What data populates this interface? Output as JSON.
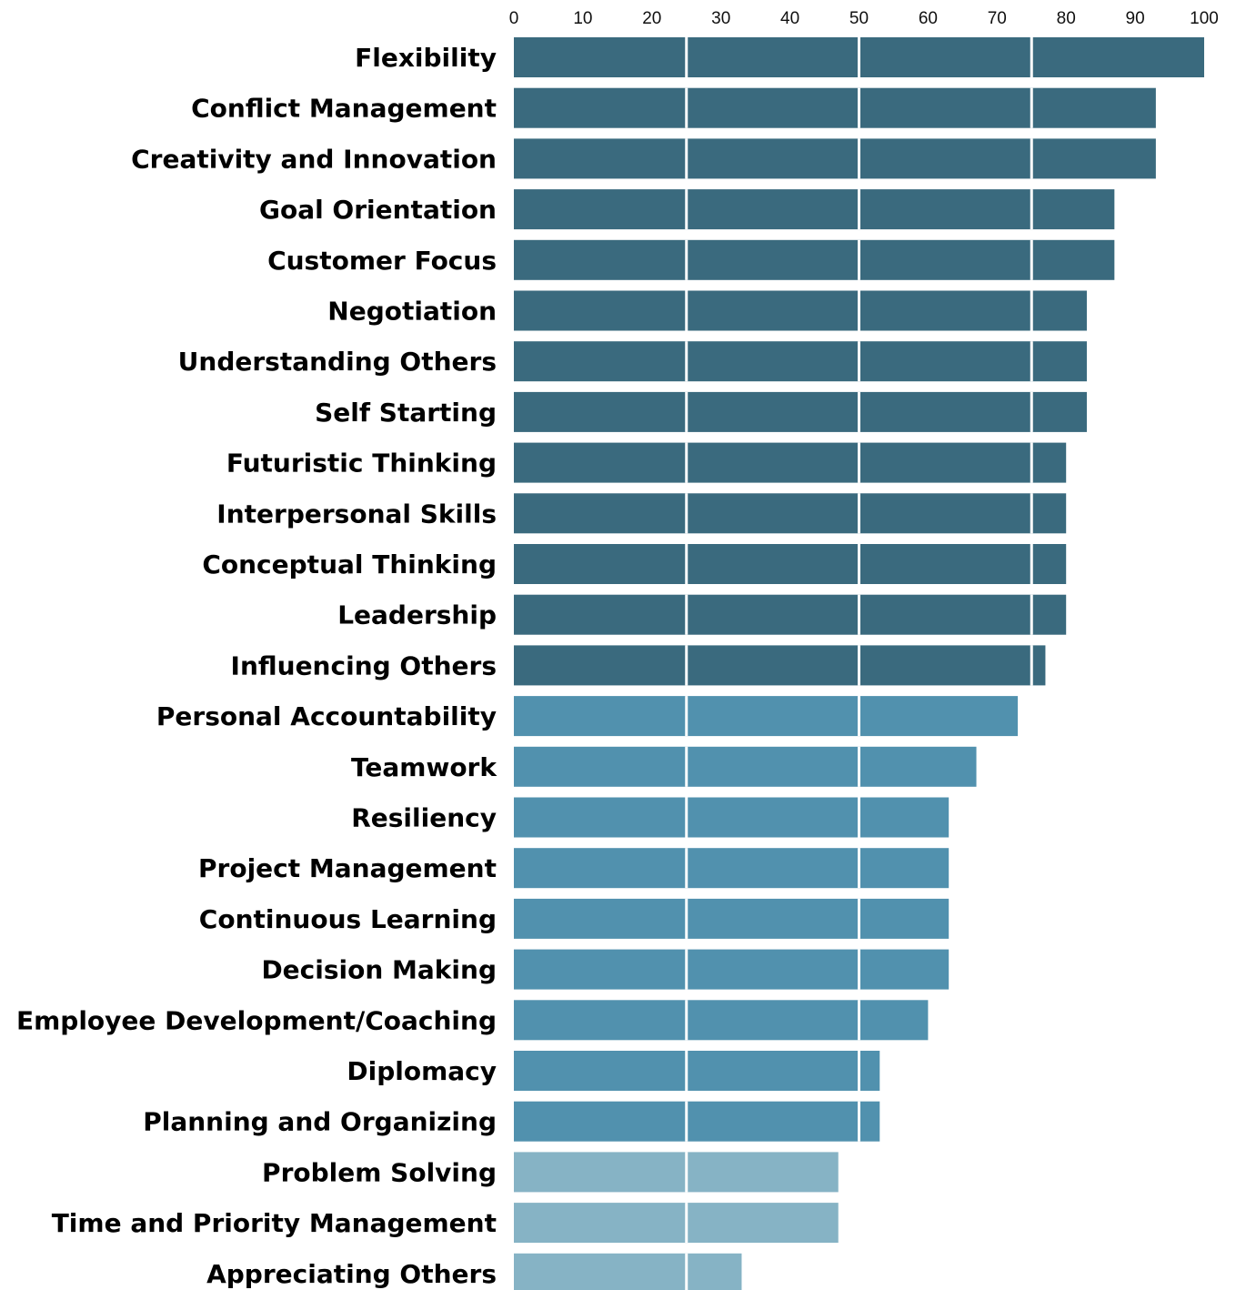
{
  "chart_data": {
    "type": "bar",
    "orientation": "horizontal",
    "title": "",
    "xlabel": "",
    "ylabel": "",
    "xlim": [
      0,
      100
    ],
    "x_ticks": [
      0,
      10,
      20,
      30,
      40,
      50,
      60,
      70,
      80,
      90,
      100
    ],
    "x_axis_position": "top",
    "gridlines_at": [
      25,
      50,
      75
    ],
    "legend": "none",
    "colors": {
      "high": "#3a6a7e",
      "mid": "#5191ae",
      "low": "#86b3c5"
    },
    "categories": [
      "Flexibility",
      "Conflict Management",
      "Creativity and Innovation",
      "Goal Orientation",
      "Customer Focus",
      "Negotiation",
      "Understanding Others",
      "Self Starting",
      "Futuristic Thinking",
      "Interpersonal Skills",
      "Conceptual Thinking",
      "Leadership",
      "Influencing Others",
      "Personal Accountability",
      "Teamwork",
      "Resiliency",
      "Project Management",
      "Continuous Learning",
      "Decision Making",
      "Employee Development/Coaching",
      "Diplomacy",
      "Planning and Organizing",
      "Problem Solving",
      "Time and Priority Management",
      "Appreciating Others"
    ],
    "values": [
      100,
      93,
      93,
      87,
      87,
      83,
      83,
      83,
      80,
      80,
      80,
      80,
      77,
      73,
      67,
      63,
      63,
      63,
      63,
      60,
      53,
      53,
      47,
      47,
      33
    ],
    "color_groups": [
      "high",
      "high",
      "high",
      "high",
      "high",
      "high",
      "high",
      "high",
      "high",
      "high",
      "high",
      "high",
      "high",
      "mid",
      "mid",
      "mid",
      "mid",
      "mid",
      "mid",
      "mid",
      "mid",
      "mid",
      "low",
      "low",
      "low"
    ]
  }
}
